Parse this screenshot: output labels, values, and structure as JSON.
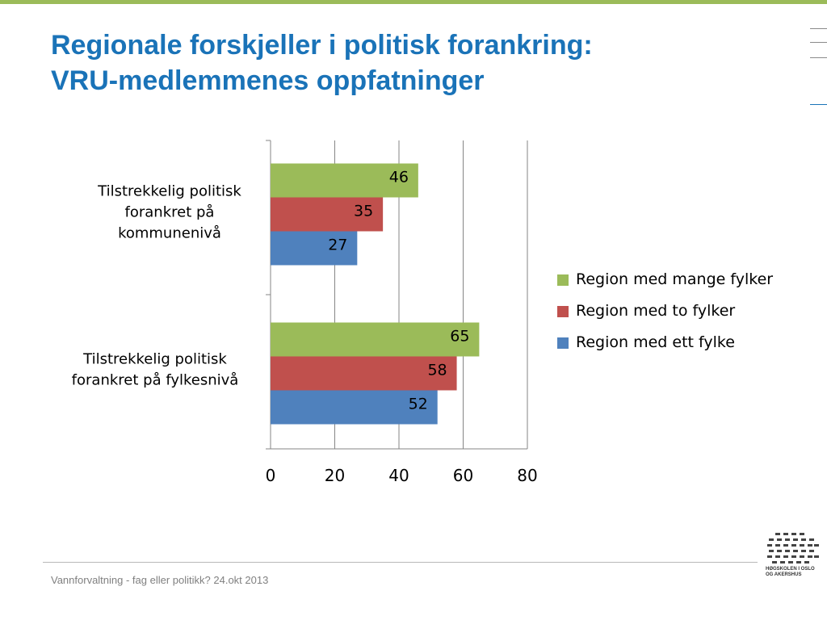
{
  "slide": {
    "title_line1": "Regionale forskjeller i politisk forankring:",
    "title_line2": "VRU-medlemmenes oppfatninger",
    "footer": "Vannforvaltning - fag eller politikk? 24.okt 2013",
    "logo_line1": "HØGSKOLEN I OSLO",
    "logo_line2": "OG AKERSHUS"
  },
  "colors": {
    "accent_bar": "#9bbb59",
    "title": "#1a73b8"
  },
  "chart_data": {
    "type": "bar",
    "orientation": "horizontal",
    "categories": [
      [
        "Tilstrekkelig politisk",
        "forankret på",
        "kommunenivå"
      ],
      [
        "Tilstrekkelig politisk",
        "forankret på fylkesnivå"
      ]
    ],
    "series": [
      {
        "name": "Region med mange fylker",
        "color": "#9bbb59",
        "values": [
          46,
          65
        ]
      },
      {
        "name": "Region med to fylker",
        "color": "#c0504d",
        "values": [
          35,
          58
        ]
      },
      {
        "name": "Region med ett fylke",
        "color": "#4f81bd",
        "values": [
          27,
          52
        ]
      }
    ],
    "xlim": [
      0,
      80
    ],
    "xticks": [
      0,
      20,
      40,
      60,
      80
    ],
    "grid": true,
    "legend_position": "right",
    "data_labels": true
  }
}
